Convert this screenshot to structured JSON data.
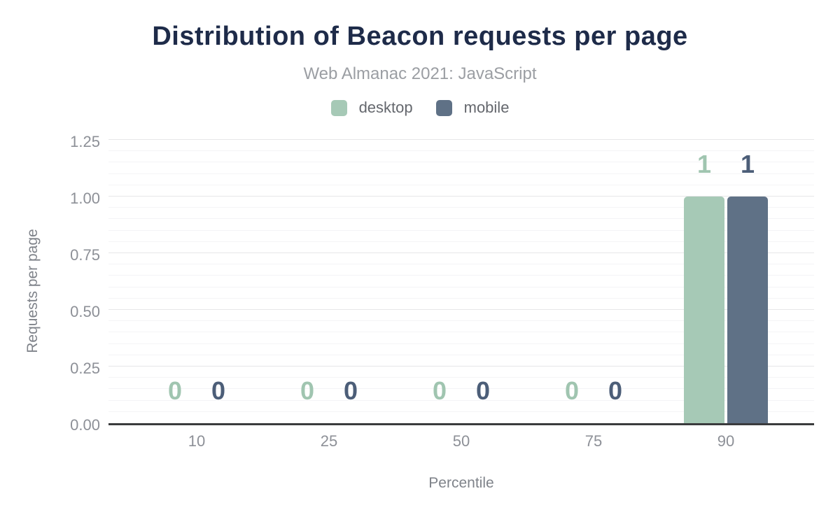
{
  "header": {
    "title": "Distribution of Beacon requests per page",
    "subtitle": "Web Almanac 2021: JavaScript"
  },
  "legend": {
    "items": [
      {
        "label": "desktop",
        "color": "#a6c9b6"
      },
      {
        "label": "mobile",
        "color": "#5f7186"
      }
    ]
  },
  "chart_data": {
    "type": "bar",
    "title": "Distribution of Beacon requests per page",
    "subtitle": "Web Almanac 2021: JavaScript",
    "categories": [
      "10",
      "25",
      "50",
      "75",
      "90"
    ],
    "series": [
      {
        "name": "desktop",
        "color": "#a6c9b6",
        "label_color": "#a0c5b0",
        "values": [
          0,
          0,
          0,
          0,
          1
        ]
      },
      {
        "name": "mobile",
        "color": "#5f7186",
        "label_color": "#4c5e78",
        "values": [
          0,
          0,
          0,
          0,
          1
        ]
      }
    ],
    "xlabel": "Percentile",
    "ylabel": "Requests per page",
    "ylim": [
      0,
      1.25
    ],
    "yticks": [
      "0.00",
      "0.25",
      "0.50",
      "0.75",
      "1.00",
      "1.25"
    ],
    "ytick_values": [
      0,
      0.25,
      0.5,
      0.75,
      1.0,
      1.25
    ],
    "minor_grid_step": 0.05,
    "major_grid_step": 0.25,
    "grid": true,
    "legend_position": "top",
    "data_labels_shown": true
  },
  "colors": {
    "background": "#ffffff",
    "title": "#1e2b49",
    "subtitle": "#9b9ea3",
    "tick_text": "#8d9097",
    "axis_title_text": "#7f838a",
    "legend_text": "#64676d",
    "axis_line": "#3a3b3d",
    "grid_major": "#e6e6e8",
    "grid_minor": "#f4f4f6"
  }
}
